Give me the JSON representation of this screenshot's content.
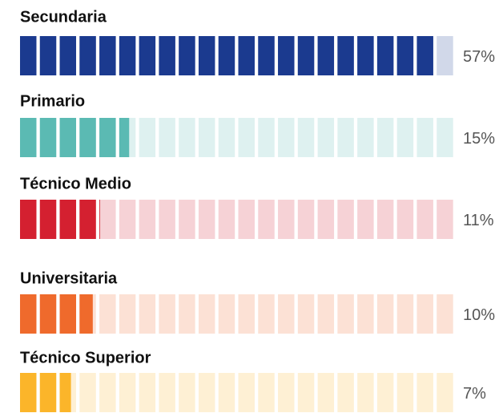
{
  "chart_data": {
    "type": "bar",
    "categories": [
      "Secundaria",
      "Primario",
      "Técnico Medio",
      "Universitaria",
      "Técnico Superior"
    ],
    "values": [
      57,
      15,
      11,
      10,
      7
    ],
    "value_labels": [
      "57%",
      "15%",
      "11%",
      "10%",
      "7%"
    ],
    "colors": [
      "#1b3a8f",
      "#5bbab3",
      "#d42030",
      "#ef6a2c",
      "#fbb52a"
    ],
    "xlim": [
      0,
      60
    ]
  }
}
